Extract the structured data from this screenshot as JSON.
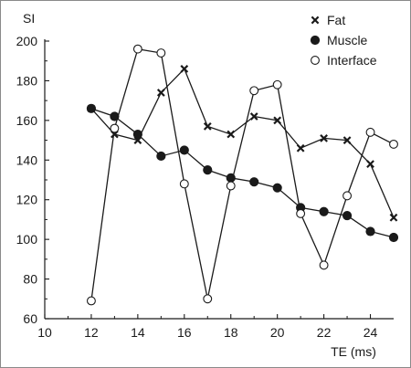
{
  "chart_data": {
    "type": "line",
    "title": "",
    "xlabel": "TE (ms)",
    "ylabel": "SI",
    "xlim": [
      10,
      25
    ],
    "ylim": [
      60,
      200
    ],
    "x_ticks": [
      10,
      12,
      14,
      16,
      18,
      20,
      22,
      24
    ],
    "y_ticks": [
      60,
      80,
      100,
      120,
      140,
      160,
      180,
      200
    ],
    "grid": false,
    "legend_position": "top-right",
    "x": [
      12,
      13,
      14,
      15,
      16,
      17,
      18,
      19,
      20,
      21,
      22,
      23,
      24,
      25
    ],
    "series": [
      {
        "name": "Fat",
        "marker": "x-cross",
        "color": "#1a1a1a",
        "values": [
          166,
          153,
          150,
          174,
          186,
          157,
          153,
          162,
          160,
          146,
          151,
          150,
          138,
          111
        ]
      },
      {
        "name": "Muscle",
        "marker": "filled-circle",
        "color": "#1a1a1a",
        "values": [
          166,
          162,
          153,
          142,
          145,
          135,
          131,
          129,
          126,
          116,
          114,
          112,
          104,
          101
        ]
      },
      {
        "name": "Interface",
        "marker": "open-circle",
        "color": "#1a1a1a",
        "values": [
          69,
          156,
          196,
          194,
          128,
          70,
          127,
          175,
          178,
          113,
          87,
          122,
          154,
          148
        ]
      }
    ]
  }
}
